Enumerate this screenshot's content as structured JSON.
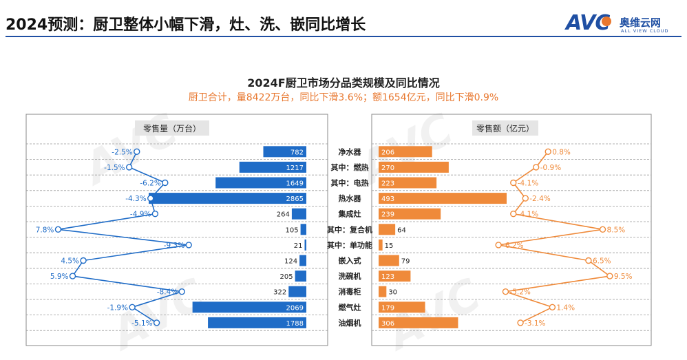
{
  "slide": {
    "title": "2024预测：厨卫整体小幅下滑，灶、洗、嵌同比增长",
    "logo": {
      "mark": "AVC",
      "cn": "奥维云网",
      "en": "ALL VIEW CLOUD"
    }
  },
  "colors": {
    "volume": "#1f6cc7",
    "value": "#ef8a3a",
    "title_rule": "#1f4fa3"
  },
  "chart_data": {
    "type": "bar",
    "title": "2024F厨卫市场分品类规模及同比情况",
    "subtitle": "厨卫合计，量8422万台，同比下滑3.6%；额1654亿元，同比下滑0.9%",
    "categories": [
      "净水器",
      "其中：燃热",
      "其中：电热",
      "热水器",
      "集成灶",
      "其中：复合机",
      "其中：单功能",
      "嵌入式",
      "洗碗机",
      "消毒柜",
      "燃气灶",
      "油烟机"
    ],
    "series": [
      {
        "name": "零售量（万台）",
        "values": [
          782,
          1217,
          1649,
          2865,
          264,
          105,
          21,
          124,
          205,
          322,
          2069,
          1788
        ],
        "yoy": [
          -2.5,
          -1.5,
          -6.2,
          -4.3,
          -4.9,
          7.8,
          -9.3,
          4.5,
          5.9,
          -8.4,
          -1.9,
          -5.1
        ],
        "yoy_labels": [
          "-2.5%",
          "-1.5%",
          "-6.2%",
          "-4.3%",
          "-4.9%",
          "7.8%",
          "-9.3%",
          "4.5%",
          "5.9%",
          "-8.4%",
          "-1.9%",
          "-5.1%"
        ]
      },
      {
        "name": "零售额（亿元）",
        "values": [
          206,
          270,
          223,
          493,
          239,
          64,
          15,
          79,
          123,
          30,
          179,
          306
        ],
        "yoy": [
          0.8,
          -0.9,
          -4.1,
          -2.4,
          -4.1,
          8.5,
          -6.2,
          6.5,
          9.5,
          -5.2,
          1.4,
          -3.1
        ],
        "yoy_labels": [
          "0.8%",
          "-0.9%",
          "-4.1%",
          "-2.4%",
          "-4.1%",
          "8.5%",
          "-6.2%",
          "6.5%",
          "9.5%",
          "-5.2%",
          "1.4%",
          "-3.1%"
        ]
      }
    ]
  }
}
